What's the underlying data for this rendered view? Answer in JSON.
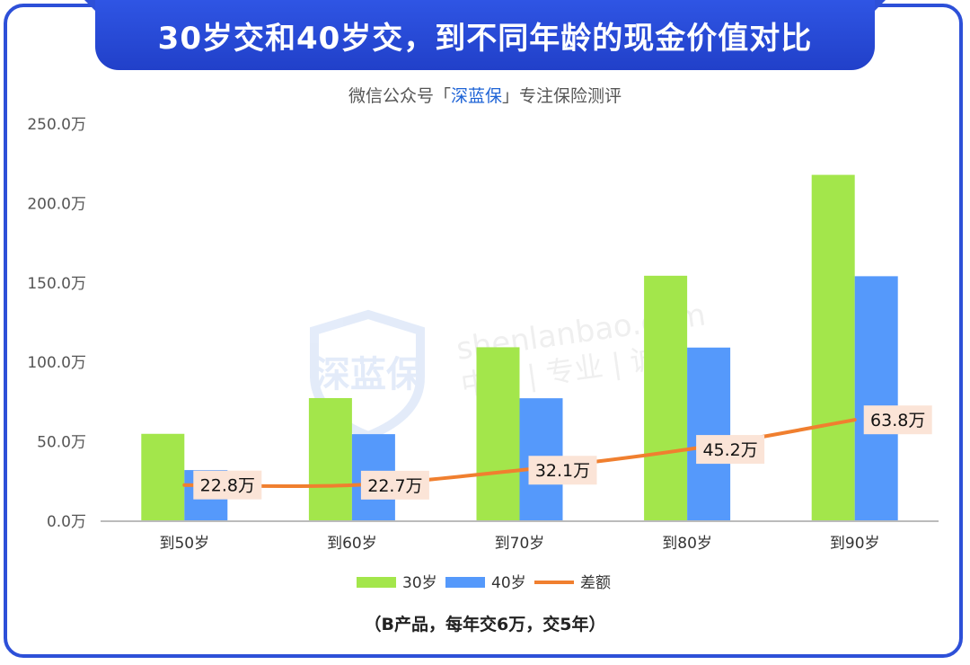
{
  "title": "30岁交和40岁交，到不同年龄的现金价值对比",
  "subtitle": {
    "prefix": "微信公众号「",
    "brand": "深蓝保",
    "suffix": "」专注保险测评"
  },
  "watermark": {
    "logo_text": "深蓝保",
    "url": "shenlanbao.com",
    "slogan": "中立 | 专业 | 诚信"
  },
  "note": "（B产品，每年交6万，交5年）",
  "colors": {
    "series_30": "#a3e64b",
    "series_40": "#5599fb",
    "diff_line": "#f07f2f",
    "label_bg": "#fbe4d7",
    "axis": "#bbbbbb"
  },
  "chart_data": {
    "type": "bar",
    "categories": [
      "到50岁",
      "到60岁",
      "到70岁",
      "到80岁",
      "到90岁"
    ],
    "series": [
      {
        "name": "30岁",
        "type": "bar",
        "values": [
          55.0,
          77.5,
          109.5,
          154.5,
          218.0
        ]
      },
      {
        "name": "40岁",
        "type": "bar",
        "values": [
          32.2,
          54.8,
          77.4,
          109.3,
          154.2
        ]
      },
      {
        "name": "差额",
        "type": "line",
        "values": [
          22.8,
          22.7,
          32.1,
          45.2,
          63.8
        ]
      }
    ],
    "line_labels": [
      "22.8万",
      "22.7万",
      "32.1万",
      "45.2万",
      "63.8万"
    ],
    "y_ticks": [
      "0.0万",
      "50.0万",
      "100.0万",
      "150.0万",
      "200.0万",
      "250.0万"
    ],
    "ylim": [
      0,
      250
    ],
    "legend_position": "bottom",
    "grid": false
  }
}
